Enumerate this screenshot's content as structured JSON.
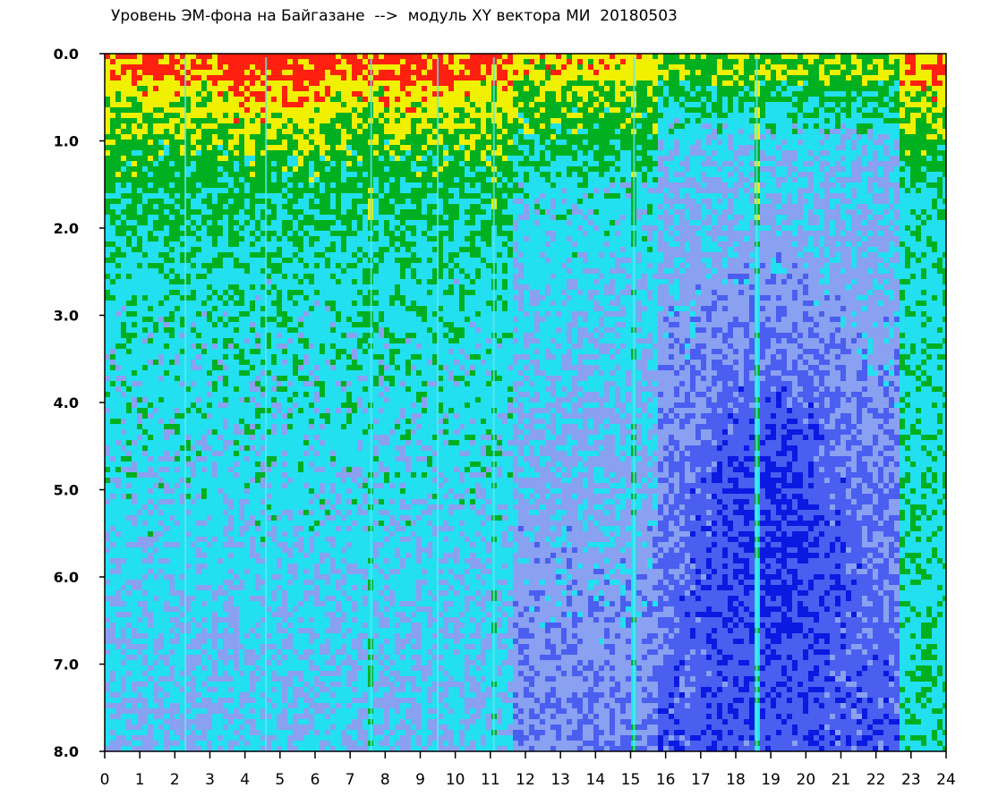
{
  "chart_data": {
    "type": "heatmap",
    "title": "Уровень ЭМ-фона на Байгазане  -->  модуль XY вектора МИ  20180503",
    "xlabel": "",
    "ylabel": "",
    "xlim": [
      0,
      24
    ],
    "ylim": [
      0,
      8
    ],
    "y_inverted": true,
    "x_ticks": [
      "0",
      "1",
      "2",
      "3",
      "4",
      "5",
      "6",
      "7",
      "8",
      "9",
      "10",
      "11",
      "12",
      "13",
      "14",
      "15",
      "16",
      "17",
      "18",
      "19",
      "20",
      "21",
      "22",
      "23",
      "24"
    ],
    "y_ticks": [
      "0.0",
      "1.0",
      "2.0",
      "3.0",
      "4.0",
      "5.0",
      "6.0",
      "7.0",
      "8.0"
    ],
    "colorscale": [
      "#0a1ae0",
      "#4a5ef0",
      "#8aa0f0",
      "#22e0f0",
      "#00b020",
      "#f0f000",
      "#ff2010",
      "#ffffff"
    ],
    "regions": [
      {
        "x_range": [
          0,
          11.7
        ],
        "level_profile": "high near 0, cyan by 2.5, light blue to 8"
      },
      {
        "x_range": [
          11.7,
          15.8
        ],
        "level_profile": "high near 0, cyan by 1.5, blue to 8"
      },
      {
        "x_range": [
          15.8,
          22.6
        ],
        "level_profile": "green near 0, blue by 1.0, deep blue 3-7"
      },
      {
        "x_range": [
          22.6,
          24
        ],
        "level_profile": "high near 0, cyan below 1.5"
      }
    ],
    "bright_streaks_x": [
      2.3,
      4.6,
      7.6,
      9.5,
      11.1,
      15.1,
      18.6
    ]
  }
}
